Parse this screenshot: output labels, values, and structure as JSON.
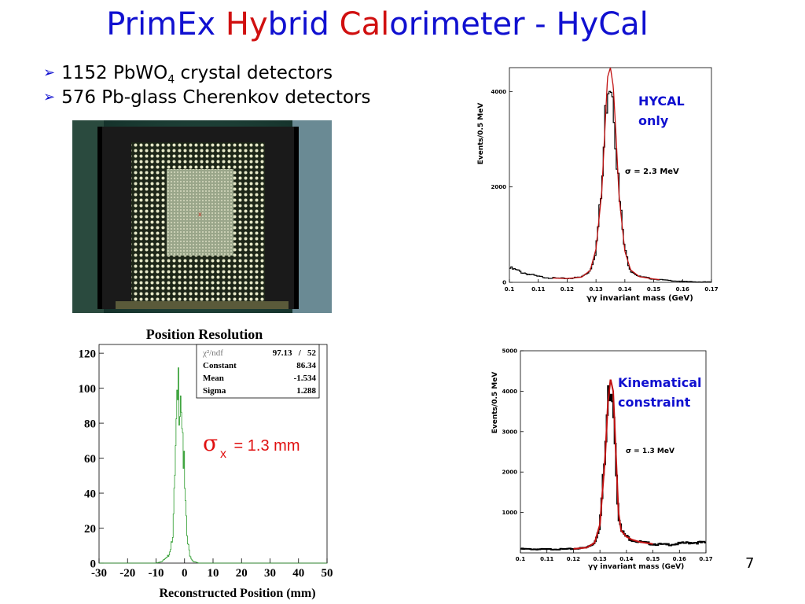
{
  "slide": {
    "title_parts": [
      "PrimEx ",
      "Hy",
      "brid ",
      "Cal",
      "orimeter - HyCal"
    ],
    "page_number": "7"
  },
  "bullets": [
    {
      "prefix": "1152 PbWO",
      "sub": "4",
      "suffix": " crystal detectors"
    },
    {
      "prefix": "576 Pb-glass Cherenkov detectors",
      "sub": "",
      "suffix": ""
    }
  ],
  "photo": {
    "icon": "detector-photo-icon"
  },
  "top_right_plot": {
    "label_line1": "HYCAL",
    "label_line2": "only",
    "sigma_text": "σ = 2.3 MeV",
    "label_color": "#1010d0"
  },
  "bottom_right_plot": {
    "label_line1": "Kinematical",
    "label_line2": "constraint",
    "sigma_text": "σ = 1.3 MeV",
    "label_color": "#1010d0"
  },
  "position_plot": {
    "stats_box": {
      "rows": [
        {
          "key": "χ²/ndf",
          "value": "97.13   /   52"
        },
        {
          "key": "Constant",
          "value": "86.34"
        },
        {
          "key": "Mean",
          "value": "-1.534"
        },
        {
          "key": "Sigma",
          "value": "1.288"
        }
      ]
    },
    "sigma_label": {
      "symbol": "σ",
      "sub": "x",
      "text": " = 1.3 mm",
      "color": "#e01010"
    }
  },
  "chart_data": [
    {
      "type": "line",
      "title": "",
      "xlabel": "γγ invariant mass (GeV)",
      "ylabel": "Events/0.5 MeV",
      "xlim": [
        0.1,
        0.17
      ],
      "ylim": [
        0,
        4500
      ],
      "xticks": [
        "0.1",
        "0.11",
        "0.12",
        "0.13",
        "0.14",
        "0.15",
        "0.16",
        "0.17"
      ],
      "yticks": [
        "0",
        "2000",
        "4000"
      ],
      "series": [
        {
          "x": [
            0.1,
            0.105,
            0.11,
            0.115,
            0.12,
            0.125,
            0.128,
            0.13,
            0.132,
            0.133,
            0.134,
            0.135,
            0.136,
            0.137,
            0.138,
            0.14,
            0.142,
            0.145,
            0.15,
            0.155,
            0.16,
            0.165,
            0.17
          ],
          "y": [
            300,
            200,
            120,
            90,
            80,
            110,
            250,
            700,
            1900,
            3100,
            4300,
            4500,
            4100,
            3000,
            1800,
            650,
            260,
            120,
            70,
            40,
            20,
            10,
            5
          ]
        }
      ]
    },
    {
      "type": "line",
      "title": "",
      "xlabel": "γγ invariant mass (GeV)",
      "ylabel": "Events/0.5 MeV",
      "xlim": [
        0.1,
        0.17
      ],
      "ylim": [
        0,
        5000
      ],
      "xticks": [
        "0.1",
        "0.11",
        "0.12",
        "0.13",
        "0.14",
        "0.15",
        "0.16",
        "0.17"
      ],
      "yticks": [
        "1000",
        "2000",
        "3000",
        "4000",
        "5000"
      ],
      "series": [
        {
          "x": [
            0.1,
            0.105,
            0.11,
            0.115,
            0.12,
            0.125,
            0.128,
            0.13,
            0.132,
            0.133,
            0.134,
            0.135,
            0.136,
            0.137,
            0.138,
            0.14,
            0.142,
            0.145,
            0.15,
            0.155,
            0.16,
            0.165,
            0.17
          ],
          "y": [
            100,
            90,
            90,
            90,
            100,
            130,
            250,
            700,
            2400,
            3700,
            4300,
            4000,
            2500,
            1000,
            550,
            400,
            330,
            270,
            220,
            200,
            230,
            260,
            250
          ]
        }
      ]
    },
    {
      "type": "line",
      "title": "Position Resolution",
      "xlabel": "Reconstructed Position (mm)",
      "ylabel": "",
      "xlim": [
        -30,
        50
      ],
      "ylim": [
        0,
        125
      ],
      "xticks": [
        "-30",
        "-20",
        "-10",
        "0",
        "10",
        "20",
        "30",
        "40",
        "50"
      ],
      "yticks": [
        "0",
        "20",
        "40",
        "60",
        "80",
        "100",
        "120"
      ],
      "series": [
        {
          "x": [
            -30,
            -10,
            -8,
            -6,
            -5,
            -4,
            -3.5,
            -3,
            -2.5,
            -2,
            -1.5,
            -1,
            -0.5,
            0,
            0.5,
            1,
            2,
            3,
            5,
            10,
            50
          ],
          "y": [
            0,
            0,
            1,
            3,
            8,
            20,
            40,
            65,
            85,
            100,
            114,
            95,
            70,
            45,
            25,
            12,
            4,
            1,
            0,
            0,
            0
          ]
        }
      ]
    }
  ]
}
